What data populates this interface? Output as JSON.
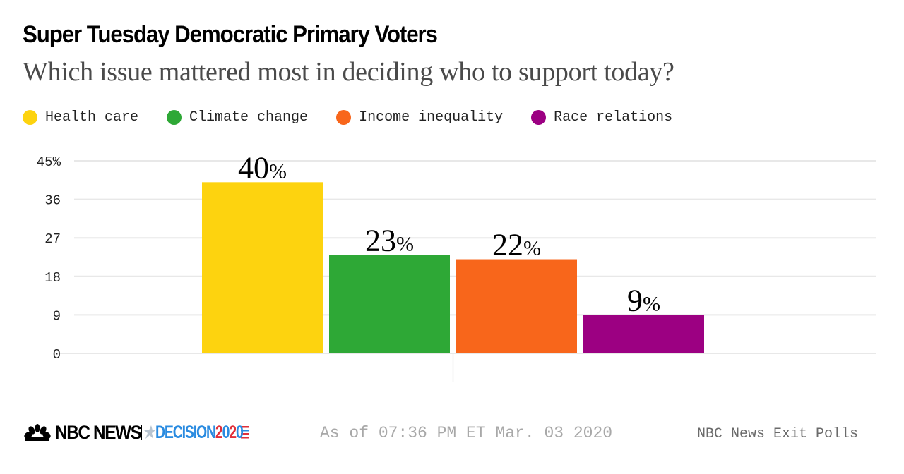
{
  "header": {
    "title": "Super Tuesday Democratic Primary Voters",
    "subtitle": "Which issue mattered most in deciding who to support today?"
  },
  "legend": [
    {
      "label": "Health care",
      "color": "#fdd30f"
    },
    {
      "label": "Climate change",
      "color": "#2ea836"
    },
    {
      "label": "Income inequality",
      "color": "#f8661b"
    },
    {
      "label": "Race relations",
      "color": "#9c0082"
    }
  ],
  "chart_data": {
    "type": "bar",
    "title": "Super Tuesday Democratic Primary Voters",
    "subtitle": "Which issue mattered most in deciding who to support today?",
    "categories": [
      "Health care",
      "Climate change",
      "Income inequality",
      "Race relations"
    ],
    "values": [
      40,
      23,
      22,
      9
    ],
    "data_labels": [
      "40",
      "23",
      "22",
      "9"
    ],
    "label_suffix": "%",
    "colors": [
      "#fdd30f",
      "#2ea836",
      "#f8661b",
      "#9c0082"
    ],
    "xlabel": "",
    "ylabel": "",
    "ylim": [
      0,
      45
    ],
    "yticks": [
      0,
      9,
      18,
      27,
      36,
      45
    ],
    "ytick_labels": [
      "0",
      "9",
      "18",
      "27",
      "36",
      "45%"
    ],
    "grid": true,
    "legend_position": "top-left"
  },
  "footer": {
    "brand": "NBC NEWS",
    "decision_word": "DECISION",
    "decision_year_digits": [
      "2",
      "0",
      "2",
      "0"
    ],
    "timestamp": "As of 07:36 PM ET Mar. 03 2020",
    "source": "NBC News Exit Polls"
  }
}
